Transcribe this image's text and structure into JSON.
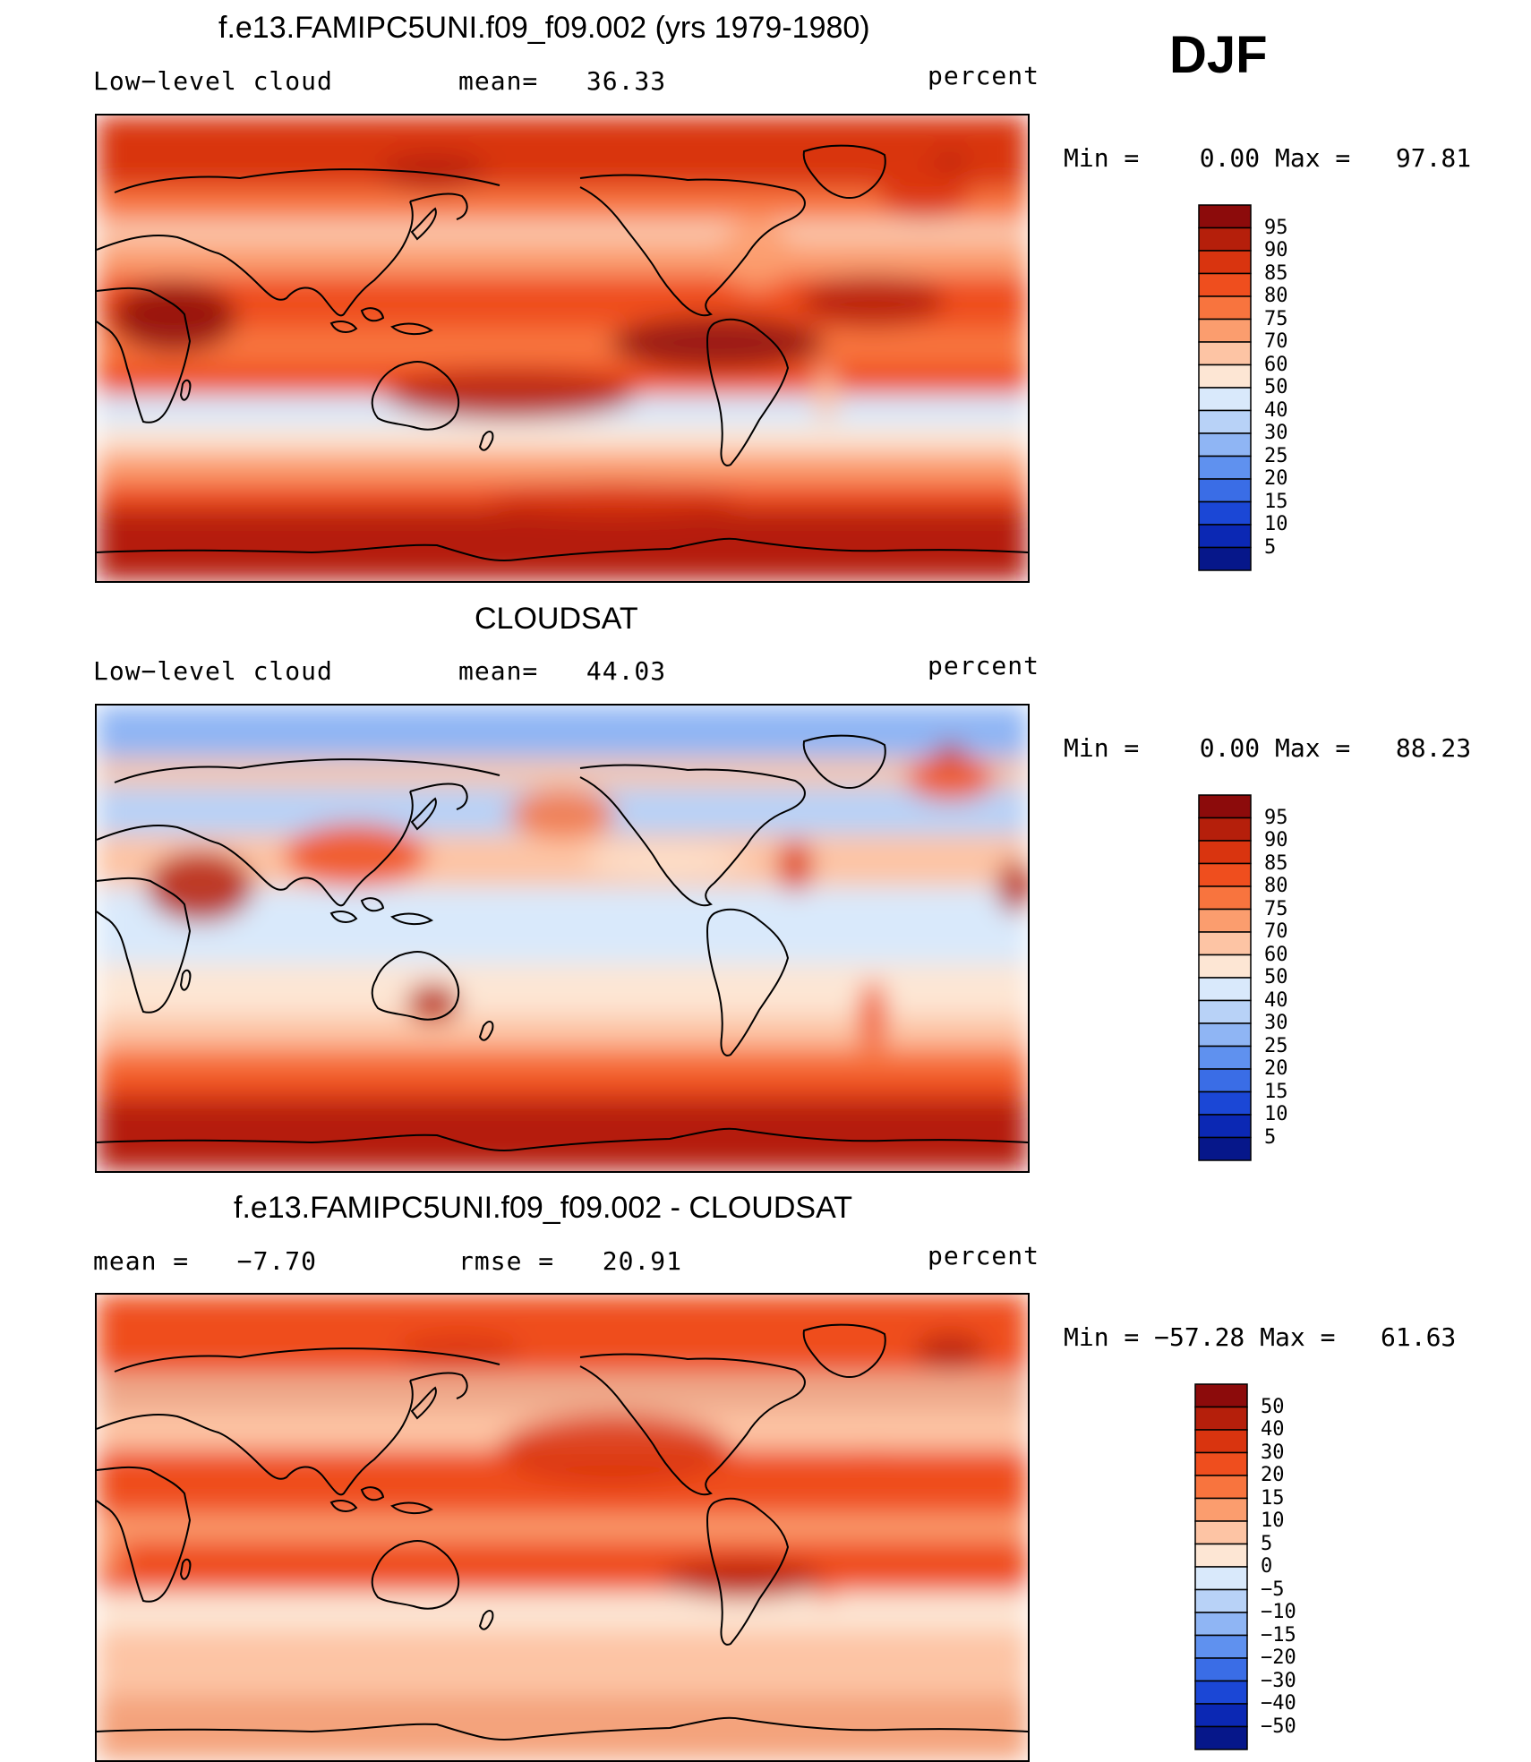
{
  "season": "DJF",
  "panels": [
    {
      "id": "model",
      "title": "f.e13.FAMIPC5UNI.f09_f09.002 (yrs 1979-1980)",
      "left_label": "Low−level cloud",
      "center_label": "mean=   36.33",
      "units": "percent",
      "minmax": "Min =    0.00 Max =   97.81",
      "colorbar_labels": [
        "95",
        "90",
        "85",
        "80",
        "75",
        "70",
        "60",
        "50",
        "40",
        "30",
        "25",
        "20",
        "15",
        "10",
        "5"
      ],
      "colorbar_colors": [
        "#8c0b0b",
        "#b51f0b",
        "#d9340f",
        "#ef4e1e",
        "#f8743e",
        "#fb9d6e",
        "#fdc4a4",
        "#fde6d4",
        "#d9e9fb",
        "#b8d2f7",
        "#8fb5f4",
        "#5f91ef",
        "#3a6de6",
        "#1b47d6",
        "#0b28b4",
        "#06178a"
      ]
    },
    {
      "id": "obs",
      "title": "CLOUDSAT",
      "left_label": "Low−level cloud",
      "center_label": "mean=   44.03",
      "units": "percent",
      "minmax": "Min =    0.00 Max =   88.23",
      "colorbar_labels": [
        "95",
        "90",
        "85",
        "80",
        "75",
        "70",
        "60",
        "50",
        "40",
        "30",
        "25",
        "20",
        "15",
        "10",
        "5"
      ],
      "colorbar_colors": [
        "#8c0b0b",
        "#b51f0b",
        "#d9340f",
        "#ef4e1e",
        "#f8743e",
        "#fb9d6e",
        "#fdc4a4",
        "#fde6d4",
        "#d9e9fb",
        "#b8d2f7",
        "#8fb5f4",
        "#5f91ef",
        "#3a6de6",
        "#1b47d6",
        "#0b28b4",
        "#06178a"
      ]
    },
    {
      "id": "diff",
      "title": "f.e13.FAMIPC5UNI.f09_f09.002 - CLOUDSAT",
      "left_label": "mean =   −7.70",
      "center_label": "rmse =   20.91",
      "units": "percent",
      "minmax": "Min = −57.28 Max =   61.63",
      "colorbar_labels": [
        "50",
        "40",
        "30",
        "20",
        "15",
        "10",
        "5",
        "0",
        "−5",
        "−10",
        "−15",
        "−20",
        "−30",
        "−40",
        "−50"
      ],
      "colorbar_colors": [
        "#8c0b0b",
        "#b51f0b",
        "#d9340f",
        "#ef4e1e",
        "#f8743e",
        "#fb9d6e",
        "#fdc4a4",
        "#fde6d4",
        "#d9e9fb",
        "#b8d2f7",
        "#8fb5f4",
        "#5f91ef",
        "#3a6de6",
        "#1b47d6",
        "#0b28b4",
        "#06178a"
      ]
    }
  ]
}
